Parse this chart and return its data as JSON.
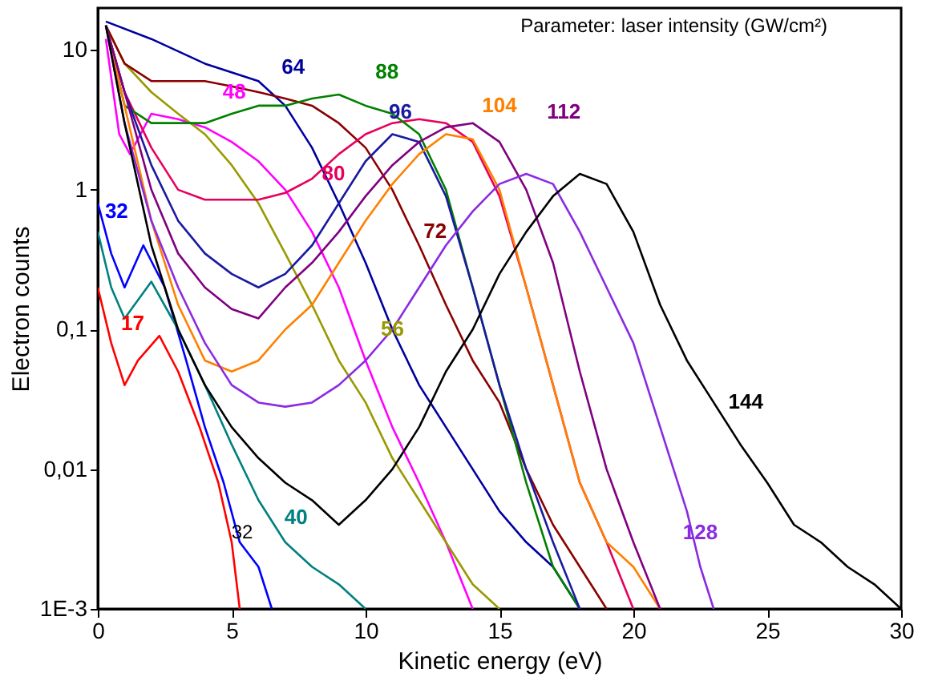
{
  "chart_data": {
    "type": "line",
    "xlabel": "Kinetic energy (eV)",
    "ylabel": "Electron counts",
    "log": "y",
    "grid": false,
    "legend": false,
    "marker": "none",
    "line_style": "solid",
    "xlim": [
      0,
      30
    ],
    "xticks": [
      0,
      5,
      10,
      15,
      20,
      25,
      30
    ],
    "ylim": [
      0.001,
      20
    ],
    "yticks": [
      {
        "value": 10,
        "label": "10"
      },
      {
        "value": 1,
        "label": "1"
      },
      {
        "value": 0.1,
        "label": "0,1"
      },
      {
        "value": 0.01,
        "label": "0,01"
      },
      {
        "value": 0.001,
        "label": "1E-3"
      }
    ],
    "annotations": [
      "Parameter: laser intensity (GW/cm²)",
      "32"
    ],
    "series": [
      {
        "name": "17",
        "color": "#ff0000",
        "x": [
          0,
          0.5,
          1,
          1.5,
          2.3,
          3,
          3.8,
          4.5,
          5,
          5.3
        ],
        "values": [
          0.2,
          0.08,
          0.04,
          0.06,
          0.09,
          0.05,
          0.02,
          0.008,
          0.003,
          0.001
        ]
      },
      {
        "name": "32",
        "color": "#0000ff",
        "x": [
          0,
          0.5,
          1,
          1.7,
          2.5,
          3.3,
          4,
          4.7,
          5.3,
          6,
          6.5
        ],
        "values": [
          0.8,
          0.35,
          0.2,
          0.4,
          0.2,
          0.06,
          0.02,
          0.008,
          0.003,
          0.002,
          0.001
        ]
      },
      {
        "name": "40",
        "color": "#008080",
        "x": [
          0,
          0.5,
          1,
          2,
          3,
          4,
          5,
          6,
          7,
          8,
          9,
          10
        ],
        "values": [
          0.5,
          0.2,
          0.12,
          0.22,
          0.1,
          0.04,
          0.015,
          0.006,
          0.003,
          0.002,
          0.0015,
          0.001
        ]
      },
      {
        "name": "48",
        "color": "#ff00ff",
        "x": [
          0.3,
          0.8,
          1.2,
          2,
          3,
          4,
          5,
          6,
          7,
          8,
          9,
          10,
          11,
          12,
          13,
          14
        ],
        "values": [
          12,
          2.5,
          1.8,
          3.5,
          3.2,
          2.8,
          2.2,
          1.6,
          1.0,
          0.5,
          0.2,
          0.06,
          0.02,
          0.008,
          0.003,
          0.001
        ]
      },
      {
        "name": "56",
        "color": "#999900",
        "x": [
          0.3,
          1,
          2,
          3,
          4,
          5,
          6,
          7,
          8,
          9,
          10,
          11,
          12,
          13,
          14,
          15
        ],
        "values": [
          15,
          8,
          5,
          3.5,
          2.5,
          1.5,
          0.8,
          0.35,
          0.15,
          0.06,
          0.03,
          0.012,
          0.006,
          0.003,
          0.0015,
          0.001
        ]
      },
      {
        "name": "64",
        "color": "#0000a0",
        "x": [
          0.3,
          2,
          4,
          6,
          7,
          8,
          9,
          10,
          11,
          12,
          13,
          14,
          15,
          16,
          17,
          18
        ],
        "values": [
          16,
          12,
          8,
          6,
          4,
          2,
          0.8,
          0.3,
          0.1,
          0.04,
          0.02,
          0.01,
          0.005,
          0.003,
          0.002,
          0.001
        ]
      },
      {
        "name": "72",
        "color": "#8b0000",
        "x": [
          0.3,
          1,
          2,
          3,
          4,
          5,
          6,
          7,
          8,
          9,
          10,
          11,
          12,
          13,
          14,
          15,
          16,
          17,
          18,
          19
        ],
        "values": [
          15,
          8,
          6,
          6,
          6,
          5.5,
          5,
          4.5,
          4,
          3,
          2,
          1,
          0.4,
          0.15,
          0.06,
          0.03,
          0.01,
          0.004,
          0.002,
          0.001
        ]
      },
      {
        "name": "80",
        "color": "#e6005c",
        "x": [
          0.3,
          1,
          2,
          3,
          4,
          5,
          6,
          7,
          8,
          9,
          10,
          11,
          12,
          13,
          14,
          15,
          16,
          17,
          18,
          19,
          20
        ],
        "values": [
          15,
          5,
          2,
          1,
          0.85,
          0.85,
          0.85,
          0.95,
          1.2,
          1.8,
          2.5,
          3,
          3.2,
          3.0,
          2.2,
          0.9,
          0.2,
          0.04,
          0.008,
          0.003,
          0.001
        ]
      },
      {
        "name": "88",
        "color": "#008000",
        "x": [
          0.3,
          1,
          2,
          3,
          4,
          5,
          6,
          7,
          8,
          9,
          10,
          11,
          12,
          13,
          14,
          15,
          16,
          17,
          18
        ],
        "values": [
          15,
          4,
          3,
          3,
          3,
          3.5,
          4,
          4,
          4.5,
          4.8,
          4,
          3.5,
          2.5,
          1,
          0.2,
          0.04,
          0.008,
          0.002,
          0.001
        ]
      },
      {
        "name": "96",
        "color": "#1a1aa0",
        "x": [
          0.3,
          1,
          2,
          3,
          4,
          5,
          6,
          7,
          8,
          9,
          10,
          11,
          12,
          13,
          14,
          15,
          16,
          17,
          18
        ],
        "values": [
          15,
          5,
          1.5,
          0.6,
          0.35,
          0.25,
          0.2,
          0.25,
          0.4,
          0.8,
          1.6,
          2.5,
          2.2,
          0.9,
          0.2,
          0.04,
          0.01,
          0.003,
          0.001
        ]
      },
      {
        "name": "104",
        "color": "#ff8000",
        "x": [
          0.3,
          1,
          2,
          3,
          4,
          5,
          6,
          7,
          8,
          9,
          10,
          11,
          12,
          13,
          14,
          15,
          16,
          17,
          18,
          19,
          20,
          21
        ],
        "values": [
          15,
          4,
          0.6,
          0.15,
          0.06,
          0.05,
          0.06,
          0.1,
          0.15,
          0.3,
          0.6,
          1.1,
          1.8,
          2.5,
          2.3,
          1.0,
          0.2,
          0.04,
          0.008,
          0.003,
          0.002,
          0.001
        ]
      },
      {
        "name": "112",
        "color": "#800080",
        "x": [
          0.3,
          1,
          2,
          3,
          4,
          5,
          6,
          7,
          8,
          9,
          10,
          11,
          12,
          13,
          14,
          15,
          16,
          17,
          18,
          19,
          20,
          21
        ],
        "values": [
          15,
          5,
          1,
          0.35,
          0.2,
          0.14,
          0.12,
          0.2,
          0.3,
          0.5,
          0.9,
          1.5,
          2.2,
          2.8,
          3,
          2.2,
          1.0,
          0.3,
          0.05,
          0.01,
          0.003,
          0.001
        ]
      },
      {
        "name": "128",
        "color": "#8a2be2",
        "x": [
          0.3,
          1,
          2,
          3,
          4,
          5,
          6,
          7,
          8,
          9,
          10,
          11,
          12,
          13,
          14,
          15,
          16,
          17,
          18,
          19,
          20,
          21,
          22,
          22.5,
          23
        ],
        "values": [
          15,
          3,
          0.6,
          0.2,
          0.08,
          0.04,
          0.03,
          0.028,
          0.03,
          0.04,
          0.06,
          0.1,
          0.2,
          0.4,
          0.7,
          1.1,
          1.3,
          1.1,
          0.5,
          0.2,
          0.08,
          0.02,
          0.005,
          0.002,
          0.001
        ]
      },
      {
        "name": "144",
        "color": "#000000",
        "x": [
          0.3,
          1,
          2,
          3,
          4,
          5,
          6,
          7,
          8,
          9,
          10,
          11,
          12,
          13,
          14,
          15,
          16,
          17,
          18,
          19,
          20,
          21,
          22,
          23,
          24,
          25,
          26,
          27,
          28,
          29,
          30
        ],
        "values": [
          15,
          3,
          0.4,
          0.1,
          0.04,
          0.02,
          0.012,
          0.008,
          0.006,
          0.004,
          0.006,
          0.01,
          0.02,
          0.05,
          0.1,
          0.25,
          0.5,
          0.9,
          1.3,
          1.1,
          0.5,
          0.15,
          0.06,
          0.03,
          0.015,
          0.008,
          0.004,
          0.003,
          0.002,
          0.0015,
          0.001
        ]
      }
    ]
  }
}
